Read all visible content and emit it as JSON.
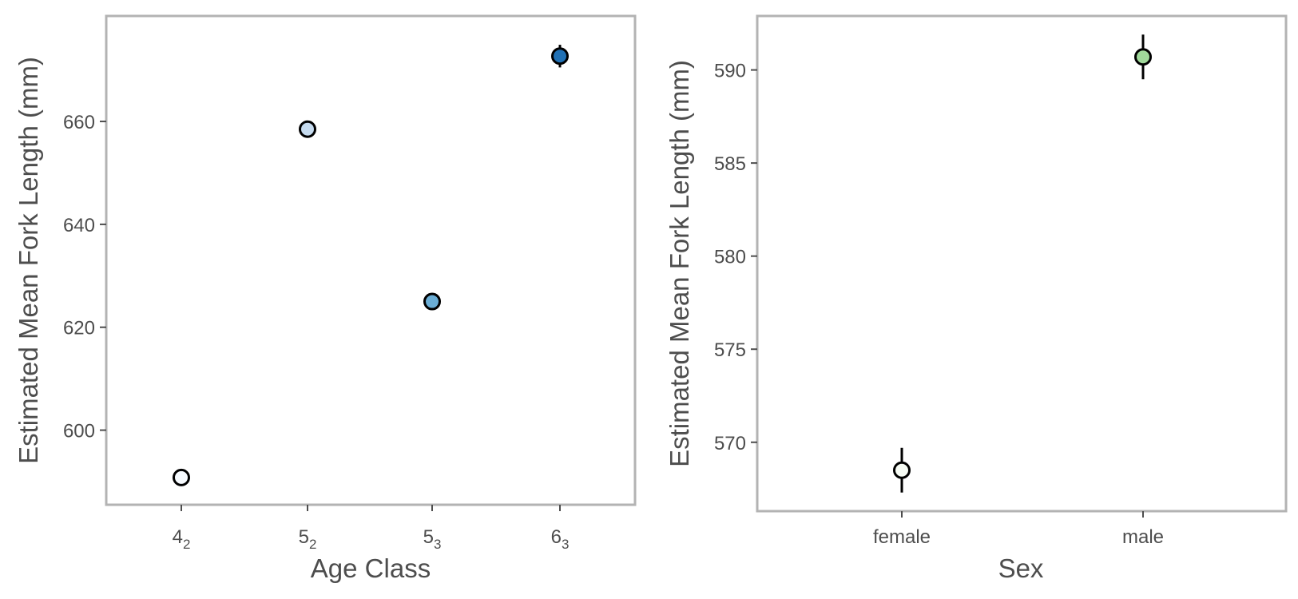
{
  "colors": {
    "panel_border": "#b3b3b3",
    "text": "#4d4d4d",
    "point_outline": "#000000",
    "errorbar": "#000000"
  },
  "chart_data": [
    {
      "type": "scatter",
      "error_bars": true,
      "xlabel": "Age Class",
      "ylabel": "Estimated Mean Fork Length (mm)",
      "categories": [
        {
          "main": "4",
          "sub": "2"
        },
        {
          "main": "5",
          "sub": "2"
        },
        {
          "main": "5",
          "sub": "3"
        },
        {
          "main": "6",
          "sub": "3"
        }
      ],
      "points": [
        {
          "category": "4_2",
          "y": 590.8,
          "lower": 590.6,
          "upper": 591.0,
          "fill": "#f7fbff"
        },
        {
          "category": "5_2",
          "y": 658.5,
          "lower": 658.3,
          "upper": 658.7,
          "fill": "#c6dbef"
        },
        {
          "category": "5_3",
          "y": 625.0,
          "lower": 624.8,
          "upper": 625.2,
          "fill": "#6baed6"
        },
        {
          "category": "6_3",
          "y": 672.7,
          "lower": 670.5,
          "upper": 674.9,
          "fill": "#2171b5"
        }
      ],
      "ylim": [
        585.5,
        680.5
      ],
      "yticks": [
        600,
        620,
        640,
        660
      ],
      "grid": false
    },
    {
      "type": "scatter",
      "error_bars": true,
      "xlabel": "Sex",
      "ylabel": "Estimated Mean Fork Length (mm)",
      "categories": [
        "female",
        "male"
      ],
      "points": [
        {
          "category": "female",
          "y": 568.5,
          "lower": 567.3,
          "upper": 569.7,
          "fill": "#f7fcf5"
        },
        {
          "category": "male",
          "y": 590.7,
          "lower": 589.5,
          "upper": 591.9,
          "fill": "#a1d99b"
        }
      ],
      "ylim": [
        566.3,
        592.9
      ],
      "yticks": [
        570,
        575,
        580,
        585,
        590
      ],
      "grid": false
    }
  ]
}
